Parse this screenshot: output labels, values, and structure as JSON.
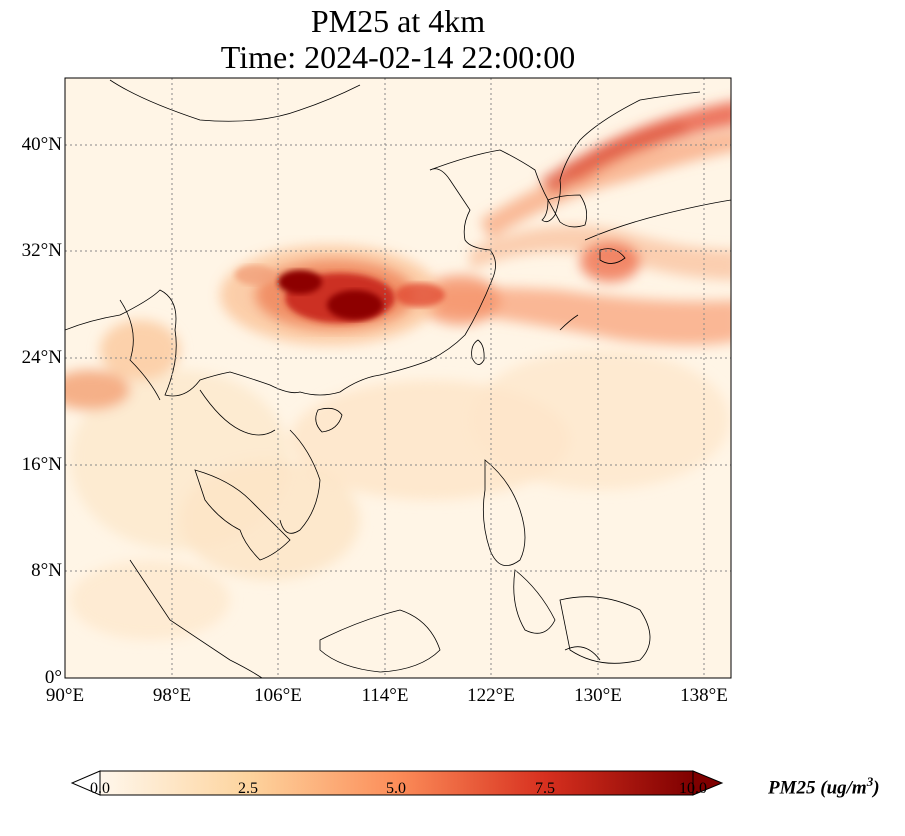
{
  "title": {
    "line1": "PM25 at 4km",
    "line2": "Time: 2024-02-14 22:00:00"
  },
  "map": {
    "lon_range": [
      90,
      140
    ],
    "lat_range": [
      0,
      45
    ],
    "x_ticks": [
      "90°E",
      "98°E",
      "106°E",
      "114°E",
      "122°E",
      "130°E",
      "138°E"
    ],
    "y_ticks": [
      "0°",
      "8°N",
      "16°N",
      "24°N",
      "32°N",
      "40°N"
    ],
    "gridlines": true,
    "colormap": "OrRd",
    "hotspot_center": "around 28°N, 110°E"
  },
  "colorbar": {
    "ticks": [
      "0.0",
      "2.5",
      "5.0",
      "7.5",
      "10.0"
    ],
    "range": [
      0,
      10
    ],
    "extend": "both",
    "label_main": "PM25 (ug/m",
    "label_sup": "3",
    "label_end": ")",
    "colors": [
      "#fff7ec",
      "#fdd49e",
      "#fc8d59",
      "#d7301f",
      "#7f0000"
    ]
  }
}
